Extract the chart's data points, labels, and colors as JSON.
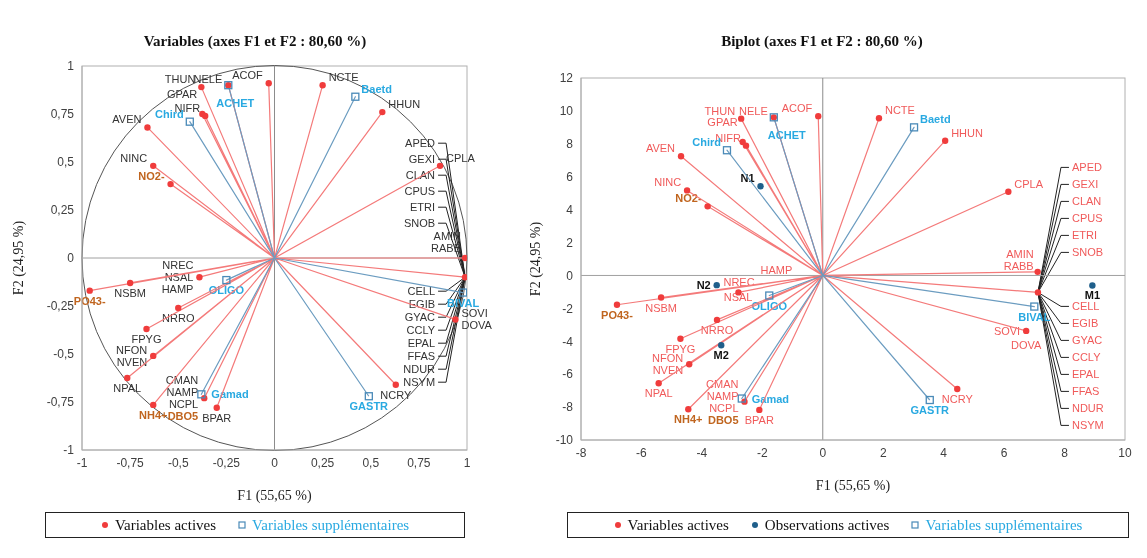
{
  "chart_data": [
    {
      "type": "scatter",
      "title": "Variables (axes F1 et F2 : 80,60 %)",
      "xlabel": "F1 (55,65 %)",
      "ylabel": "F2 (24,95 %)",
      "xlim": [
        -1,
        1
      ],
      "ylim": [
        -1,
        1
      ],
      "xticks": [
        -1,
        {
          "value": -0.75,
          "label": "-0,75"
        },
        {
          "value": -0.5,
          "label": "-0,5"
        },
        {
          "value": -0.25,
          "label": "-0,25"
        },
        0,
        {
          "value": 0.25,
          "label": "0,25"
        },
        {
          "value": 0.5,
          "label": "0,5"
        },
        {
          "value": 0.75,
          "label": "0,75"
        },
        1
      ],
      "yticks": [
        -1,
        {
          "value": -0.75,
          "label": "-0,75"
        },
        {
          "value": -0.5,
          "label": "-0,5"
        },
        {
          "value": -0.25,
          "label": "-0,25"
        },
        0,
        {
          "value": 0.25,
          "label": "0,25"
        },
        {
          "value": 0.5,
          "label": "0,5"
        },
        {
          "value": 0.75,
          "label": "0,75"
        },
        1
      ],
      "legend": "bottom",
      "grid": false,
      "ref_lines": [
        {
          "axis": "x",
          "value": 0,
          "color": "#8c8c8c"
        },
        {
          "axis": "y",
          "value": 0,
          "color": "#a0a0a0"
        }
      ],
      "annotations": [
        {
          "text": "AMIN",
          "x": 0.99,
          "y": 0
        },
        {
          "text": "RABB",
          "x": 0.99,
          "y": 0
        },
        {
          "text": "APED",
          "x": 0.99,
          "y": -0.1
        },
        {
          "text": "GEXI",
          "x": 0.99,
          "y": -0.1
        },
        {
          "text": "CLAN",
          "x": 0.99,
          "y": -0.1
        },
        {
          "text": "CPUS",
          "x": 0.99,
          "y": -0.1
        },
        {
          "text": "ETRI",
          "x": 0.99,
          "y": -0.1
        },
        {
          "text": "SNOB",
          "x": 0.99,
          "y": -0.1
        },
        {
          "text": "CELL",
          "x": 0.99,
          "y": -0.1
        },
        {
          "text": "EGIB",
          "x": 0.99,
          "y": -0.1
        },
        {
          "text": "GYAC",
          "x": 0.99,
          "y": -0.1
        },
        {
          "text": "CCLY",
          "x": 0.99,
          "y": -0.1
        },
        {
          "text": "EPAL",
          "x": 0.99,
          "y": -0.1
        },
        {
          "text": "FFAS",
          "x": 0.99,
          "y": -0.1
        },
        {
          "text": "NDUR",
          "x": 0.99,
          "y": -0.1
        },
        {
          "text": "NSYM",
          "x": 0.99,
          "y": -0.1
        },
        {
          "text": "SOVI",
          "x": 0.94,
          "y": -0.32
        },
        {
          "text": "DOVA",
          "x": 0.94,
          "y": -0.32
        },
        {
          "text": "NREC",
          "x": -0.39,
          "y": -0.1
        },
        {
          "text": "NSAL",
          "x": -0.39,
          "y": -0.1
        },
        {
          "text": "HAMP",
          "x": -0.39,
          "y": -0.1
        },
        {
          "text": "NFON",
          "x": -0.63,
          "y": -0.51
        },
        {
          "text": "NVEN",
          "x": -0.63,
          "y": -0.51
        },
        {
          "text": "CMAN",
          "x": -0.365,
          "y": -0.73
        },
        {
          "text": "NAMP",
          "x": -0.365,
          "y": -0.73
        },
        {
          "text": "NCPL",
          "x": -0.365,
          "y": -0.73
        }
      ],
      "series": [
        {
          "type": "line",
          "marker": "none",
          "color": "#f47a7a",
          "x": [
            0,
            -0.38,
            0,
            -0.24,
            0,
            -0.03,
            0,
            0.25,
            0,
            0.56,
            0,
            -0.375,
            0,
            -0.36,
            0,
            -0.66,
            0,
            -0.63,
            0,
            0.86,
            0,
            0.99,
            0,
            0.99,
            0,
            0.94,
            0,
            0.63,
            0,
            -0.39,
            0,
            -0.75,
            0,
            -0.5,
            0,
            -0.665,
            0,
            -0.63,
            0,
            -0.765,
            0,
            -0.365,
            0,
            -0.3,
            0,
            -0.54,
            0,
            -0.96,
            0,
            -0.63
          ],
          "values": [
            0,
            0.89,
            0,
            0.9,
            0,
            0.91,
            0,
            0.9,
            0,
            0.76,
            0,
            0.75,
            0,
            0.74,
            0,
            0.68,
            0,
            0.48,
            0,
            0.48,
            0,
            0,
            0,
            -0.1,
            0,
            -0.32,
            0,
            -0.66,
            0,
            -0.1,
            0,
            -0.13,
            0,
            -0.26,
            0,
            -0.37,
            0,
            -0.51,
            0,
            -0.625,
            0,
            -0.73,
            0,
            -0.78,
            0,
            0.385,
            0,
            -0.17,
            0,
            -0.765
          ]
        },
        {
          "type": "line",
          "marker": "none",
          "color": "#6b9cc0",
          "x": [
            0,
            -0.24,
            0,
            0.42,
            0,
            -0.44,
            0,
            -0.25,
            0,
            -0.38,
            0,
            0.98,
            0,
            0.49
          ],
          "values": [
            0,
            0.9,
            0,
            0.84,
            0,
            0.71,
            0,
            -0.115,
            0,
            -0.71,
            0,
            -0.18,
            0,
            -0.72
          ]
        },
        {
          "type": "scatter",
          "name": "Variables actives",
          "marker": "circle",
          "color": "#f03c3c",
          "x": [
            -0.38,
            -0.24,
            -0.03,
            0.25,
            0.56,
            -0.375,
            -0.36,
            -0.66,
            -0.63,
            0.86,
            0.99,
            0.99,
            0.94,
            0.63,
            -0.39,
            -0.75,
            -0.5,
            -0.665,
            -0.63,
            -0.765,
            -0.3
          ],
          "values": [
            0.89,
            0.9,
            0.91,
            0.9,
            0.76,
            0.75,
            0.74,
            0.68,
            0.48,
            0.48,
            0,
            -0.1,
            -0.32,
            -0.66,
            -0.1,
            -0.13,
            -0.26,
            -0.37,
            -0.51,
            -0.625,
            -0.78
          ],
          "value_labels": [
            "THUN",
            "NELE",
            "ACOF",
            "NCTE",
            "HHUN",
            "GPAR",
            "NIFR",
            "AVEN",
            "NINC",
            "CPLA",
            null,
            null,
            null,
            "NCRY",
            null,
            "NSBM",
            "NRRO",
            "FPYG",
            null,
            "NPAL",
            "BPAR"
          ]
        },
        {
          "type": "scatter",
          "marker": "circle",
          "color": "#f03c3c",
          "x": [
            -0.54,
            -0.96,
            -0.63,
            -0.365
          ],
          "values": [
            0.385,
            -0.17,
            -0.765,
            -0.73
          ],
          "value_labels": [
            "NO2-",
            "PO43-",
            "NH4+",
            "DBO5"
          ]
        },
        {
          "type": "scatter",
          "name": "Variables supplémentaires",
          "marker": "square",
          "color": "#4a8ab8",
          "x": [
            -0.24,
            0.42,
            -0.44,
            -0.25,
            -0.38,
            0.98,
            0.49
          ],
          "values": [
            0.9,
            0.84,
            0.71,
            -0.115,
            -0.71,
            -0.18,
            -0.72
          ],
          "value_labels": [
            "ACHET",
            "Baetd",
            "Chird",
            "OLIGO",
            "Gamad",
            "BIVAL",
            "GASTR"
          ]
        }
      ]
    },
    {
      "type": "scatter",
      "title": "Biplot (axes F1 et F2 : 80,60 %)",
      "xlabel": "F1 (55,65 %)",
      "ylabel": "F2 (24,95 %)",
      "xlim": [
        -8,
        10
      ],
      "ylim": [
        -10,
        12
      ],
      "xticks": [
        -8,
        -6,
        -4,
        -2,
        0,
        2,
        4,
        6,
        8,
        10
      ],
      "yticks": [
        -10,
        -8,
        -6,
        -4,
        -2,
        0,
        2,
        4,
        6,
        8,
        10,
        12
      ],
      "legend": "bottom",
      "grid": false,
      "ref_lines": [
        {
          "axis": "x",
          "value": 0,
          "color": "#8c8c8c"
        },
        {
          "axis": "y",
          "value": 0,
          "color": "#a0a0a0"
        }
      ],
      "annotations": [
        {
          "text": "AMIN",
          "x": 7.11,
          "y": 0.22
        },
        {
          "text": "RABB",
          "x": 7.11,
          "y": 0.22
        },
        {
          "text": "APED",
          "x": 7.12,
          "y": -1.03
        },
        {
          "text": "GEXI",
          "x": 7.12,
          "y": -1.03
        },
        {
          "text": "CLAN",
          "x": 7.12,
          "y": -1.03
        },
        {
          "text": "CPUS",
          "x": 7.12,
          "y": -1.03
        },
        {
          "text": "ETRI",
          "x": 7.12,
          "y": -1.03
        },
        {
          "text": "SNOB",
          "x": 7.12,
          "y": -1.03
        },
        {
          "text": "CELL",
          "x": 7.12,
          "y": -1.03
        },
        {
          "text": "EGIB",
          "x": 7.12,
          "y": -1.03
        },
        {
          "text": "GYAC",
          "x": 7.12,
          "y": -1.03
        },
        {
          "text": "CCLY",
          "x": 7.12,
          "y": -1.03
        },
        {
          "text": "EPAL",
          "x": 7.12,
          "y": -1.03
        },
        {
          "text": "FFAS",
          "x": 7.12,
          "y": -1.03
        },
        {
          "text": "NDUR",
          "x": 7.12,
          "y": -1.03
        },
        {
          "text": "NSYM",
          "x": 7.12,
          "y": -1.03
        },
        {
          "text": "SOVI",
          "x": 6.73,
          "y": -3.37
        },
        {
          "text": "DOVA",
          "x": 6.73,
          "y": -3.37
        },
        {
          "text": "NREC",
          "x": -2.79,
          "y": -1.03
        },
        {
          "text": "NSAL",
          "x": -2.79,
          "y": -1.03
        },
        {
          "text": "HAMP",
          "x": -2.79,
          "y": -1.03
        },
        {
          "text": "NFON",
          "x": -4.42,
          "y": -5.4
        },
        {
          "text": "NVEN",
          "x": -4.42,
          "y": -5.4
        },
        {
          "text": "CMAN",
          "x": -2.59,
          "y": -7.67
        },
        {
          "text": "NAMP",
          "x": -2.59,
          "y": -7.67
        },
        {
          "text": "NCPL",
          "x": -2.59,
          "y": -7.67
        }
      ],
      "series": [
        {
          "type": "line",
          "marker": "none",
          "color": "#f47a7a",
          "x": [
            0,
            -2.7,
            0,
            -1.62,
            0,
            -0.15,
            0,
            1.86,
            0,
            4.05,
            0,
            -2.65,
            0,
            -2.54,
            0,
            -4.69,
            0,
            -4.49,
            0,
            6.14,
            0,
            7.11,
            0,
            7.12,
            0,
            6.73,
            0,
            4.45,
            0,
            -2.79,
            0,
            -5.35,
            0,
            -3.5,
            0,
            -4.71,
            0,
            -4.42,
            0,
            -5.43,
            0,
            -2.59,
            0,
            -2.1,
            0,
            -3.81,
            0,
            -6.81,
            0,
            -4.45
          ],
          "values": [
            0,
            9.53,
            0,
            9.61,
            0,
            9.68,
            0,
            9.55,
            0,
            8.19,
            0,
            8.11,
            0,
            7.89,
            0,
            7.24,
            0,
            5.17,
            0,
            5.09,
            0,
            0.22,
            0,
            -1.03,
            0,
            -3.37,
            0,
            -6.9,
            0,
            -1.03,
            0,
            -1.34,
            0,
            -2.7,
            0,
            -3.85,
            0,
            -5.4,
            0,
            -6.55,
            0,
            -7.67,
            0,
            -8.17,
            0,
            4.2,
            0,
            -1.78,
            0,
            -8.13
          ]
        },
        {
          "type": "line",
          "marker": "none",
          "color": "#6b9cc0",
          "x": [
            0,
            -1.62,
            0,
            3.02,
            0,
            -3.17,
            0,
            -1.77,
            0,
            -2.68,
            0,
            7.0,
            0,
            3.54
          ],
          "values": [
            0,
            9.61,
            0,
            9.0,
            0,
            7.61,
            0,
            -1.22,
            0,
            -7.48,
            0,
            -1.89,
            0,
            -7.57
          ]
        },
        {
          "type": "scatter",
          "name": "Variables actives",
          "marker": "circle",
          "color": "#f03c3c",
          "x": [
            -2.7,
            -1.62,
            -0.15,
            1.86,
            4.05,
            -2.65,
            -2.54,
            -4.69,
            -4.49,
            6.14,
            7.11,
            7.12,
            6.73,
            4.45,
            -2.79,
            -5.35,
            -3.5,
            -4.71,
            -4.42,
            -5.43,
            -2.1
          ],
          "values": [
            9.53,
            9.61,
            9.68,
            9.55,
            8.19,
            8.11,
            7.89,
            7.24,
            5.17,
            5.09,
            0.22,
            -1.03,
            -3.37,
            -6.9,
            -1.03,
            -1.34,
            -2.7,
            -3.85,
            -5.4,
            -6.55,
            -8.17
          ],
          "value_labels": [
            "THUN",
            "NELE",
            "ACOF",
            "NCTE",
            "HHUN",
            "GPAR",
            "NIFR",
            "AVEN",
            "NINC",
            "CPLA",
            null,
            null,
            null,
            "NCRY",
            null,
            "NSBM",
            "NRRO",
            "FPYG",
            null,
            "NPAL",
            "BPAR"
          ]
        },
        {
          "type": "scatter",
          "marker": "circle",
          "color": "#f03c3c",
          "x": [
            -3.81,
            -6.81,
            -4.45,
            -2.59
          ],
          "values": [
            4.2,
            -1.78,
            -8.13,
            -7.67
          ],
          "value_labels": [
            "NO2-",
            "PO43-",
            "NH4+",
            "DBO5"
          ]
        },
        {
          "type": "scatter",
          "name": "Observations actives",
          "marker": "circle",
          "color": "#1f5f8b",
          "x": [
            -2.06,
            -3.51,
            -3.36,
            8.92
          ],
          "values": [
            5.42,
            -0.59,
            -4.24,
            -0.61
          ],
          "value_labels": [
            "N1",
            "N2",
            "M2",
            "M1"
          ]
        },
        {
          "type": "scatter",
          "name": "Variables supplémentaires",
          "marker": "square",
          "color": "#4a8ab8",
          "x": [
            -1.62,
            3.02,
            -3.17,
            -1.77,
            -2.68,
            7.0,
            3.54
          ],
          "values": [
            9.61,
            9.0,
            7.61,
            -1.22,
            -7.48,
            -1.89,
            -7.57
          ],
          "value_labels": [
            "ACHET",
            "Baetd",
            "Chird",
            "OLIGO",
            "Gamad",
            "BIVAL",
            "GASTR"
          ]
        }
      ]
    }
  ]
}
